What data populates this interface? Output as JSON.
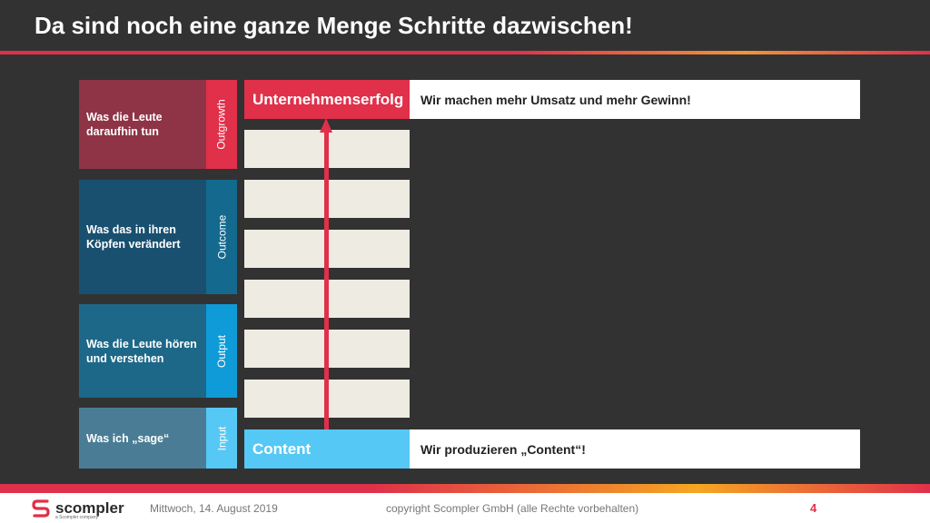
{
  "title": "Da sind noch eine ganze Menge Schritte dazwischen!",
  "rows": [
    {
      "label": "Was die Leute daraufhin tun",
      "tag": "Outgrowth",
      "label_color": "#8e3446",
      "tag_color": "#e0304a"
    },
    {
      "label": "Was das in ihren Köpfen verändert",
      "tag": "Outcome",
      "label_color": "#19506f",
      "tag_color": "#14698f"
    },
    {
      "label": "Was die Leute hören und verstehen",
      "tag": "Output",
      "label_color": "#1d6888",
      "tag_color": "#0f9ad8"
    },
    {
      "label": "Was ich „sage“",
      "tag": "Input",
      "label_color": "#4a7d95",
      "tag_color": "#56c8f5"
    }
  ],
  "top_box": {
    "label": "Unternehmenserfolg",
    "color": "#e0304a",
    "description": "Wir machen mehr Umsatz und mehr Gewinn!"
  },
  "bottom_box": {
    "label": "Content",
    "color": "#56c8f5",
    "description": "Wir produzieren „Content“!"
  },
  "footer": {
    "logo": "scompler",
    "logo_sub": "a Scompler company",
    "date": "Mittwoch, 14. August 2019",
    "copyright": "copyright Scompler GmbH (alle Rechte vorbehalten)",
    "page": "4"
  }
}
